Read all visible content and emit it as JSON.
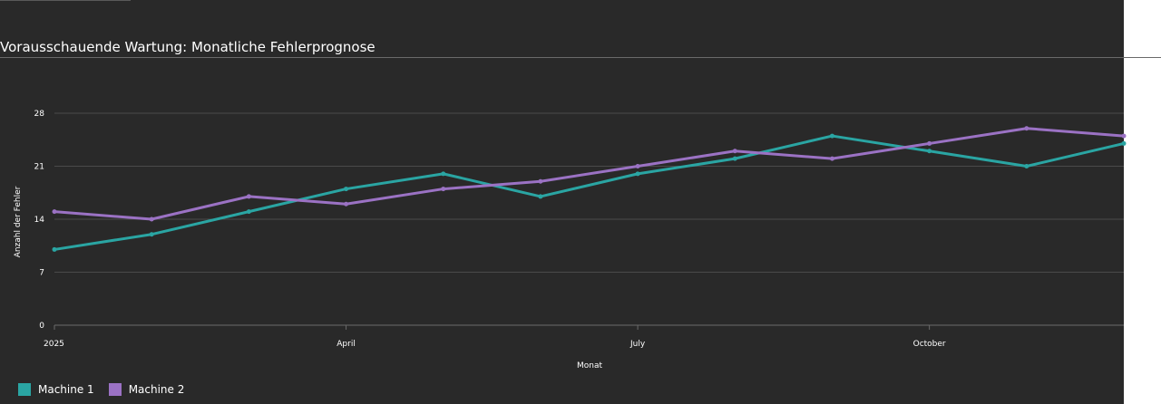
{
  "chart_data": {
    "type": "line",
    "title": "Vorausschauende Wartung: Monatliche Fehlerprognose",
    "xlabel": "Monat",
    "ylabel": "Anzahl der Fehler",
    "x": [
      "2025-01",
      "2025-02",
      "2025-03",
      "2025-04",
      "2025-05",
      "2025-06",
      "2025-07",
      "2025-08",
      "2025-09",
      "2025-10",
      "2025-11",
      "2025-12"
    ],
    "x_ticks": [
      {
        "value": "2025-01",
        "label": "2025"
      },
      {
        "value": "2025-04",
        "label": "April"
      },
      {
        "value": "2025-07",
        "label": "July"
      },
      {
        "value": "2025-10",
        "label": "October"
      }
    ],
    "y_ticks": [
      0,
      7,
      14,
      21,
      28
    ],
    "ylim": [
      0,
      28
    ],
    "grid": true,
    "legend_position": "bottom-left",
    "series": [
      {
        "name": "Machine 1",
        "color": "#2aa5a3",
        "values": [
          10,
          12,
          15,
          18,
          20,
          17,
          20,
          22,
          25,
          23,
          21,
          24
        ]
      },
      {
        "name": "Machine 2",
        "color": "#9b72c4",
        "values": [
          15,
          14,
          17,
          16,
          18,
          19,
          21,
          23,
          22,
          24,
          26,
          25
        ]
      }
    ]
  }
}
